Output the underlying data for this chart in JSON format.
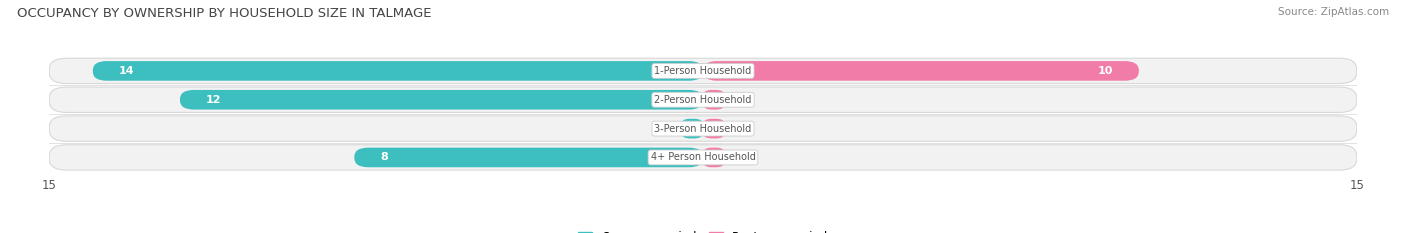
{
  "title": "OCCUPANCY BY OWNERSHIP BY HOUSEHOLD SIZE IN TALMAGE",
  "source": "Source: ZipAtlas.com",
  "categories": [
    "1-Person Household",
    "2-Person Household",
    "3-Person Household",
    "4+ Person Household"
  ],
  "owner_values": [
    14,
    12,
    0,
    8
  ],
  "renter_values": [
    10,
    0,
    0,
    0
  ],
  "owner_color": "#3dbfbf",
  "renter_color": "#f27ca8",
  "row_bg_color": "#ebebeb",
  "row_inner_color": "#f7f7f7",
  "xlim": 15,
  "title_fontsize": 9.5,
  "source_fontsize": 7.5,
  "bar_label_fontsize": 8,
  "category_fontsize": 7,
  "legend_fontsize": 8.5,
  "figsize": [
    14.06,
    2.33
  ],
  "dpi": 100
}
